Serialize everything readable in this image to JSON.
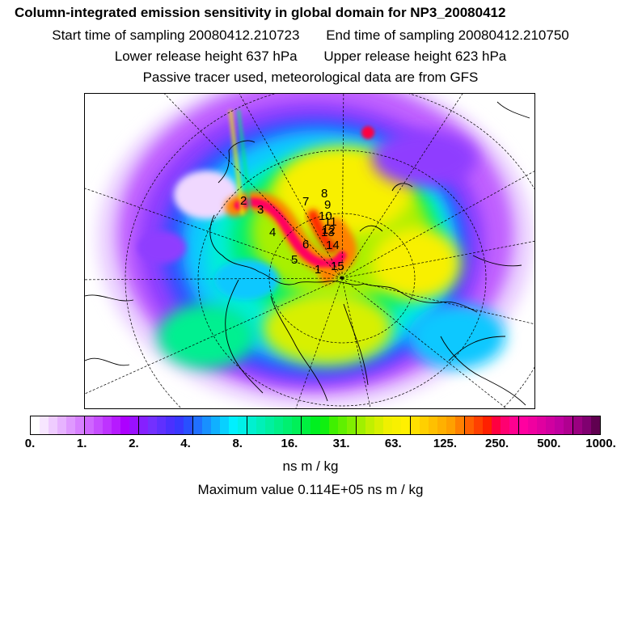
{
  "title": "Column-integrated emission sensitivity in global domain for NP3_20080412",
  "sampling": {
    "start": "Start time of sampling 20080412.210723",
    "end": "End time of sampling 20080412.210750"
  },
  "release": {
    "lower": "Lower release height  637 hPa",
    "upper": "Upper release height  623 hPa"
  },
  "note": "Passive tracer used, meteorological data are from GFS",
  "colorbar": {
    "ticks": [
      "0.",
      "1.",
      "2.",
      "4.",
      "8.",
      "16.",
      "31.",
      "63.",
      "125.",
      "250.",
      "500.",
      "1000."
    ],
    "units": "ns m / kg",
    "colors": [
      "#ffffff",
      "#f7e6ff",
      "#efccff",
      "#e7b3ff",
      "#df99ff",
      "#d780ff",
      "#cf66ff",
      "#c64dff",
      "#be33ff",
      "#b61aff",
      "#ad00ff",
      "#9a10ff",
      "#8620ff",
      "#7330ff",
      "#5f30ff",
      "#4b30ff",
      "#3838ff",
      "#2850ff",
      "#2070ff",
      "#1890ff",
      "#10b0ff",
      "#08d0ff",
      "#00f0ff",
      "#00f0e8",
      "#00f0d0",
      "#00f0b8",
      "#00f0a0",
      "#00f088",
      "#00f070",
      "#00f058",
      "#00f040",
      "#00f020",
      "#10f010",
      "#40f000",
      "#60f000",
      "#80f000",
      "#a0f000",
      "#c0f000",
      "#d8f000",
      "#f0f000",
      "#f8f000",
      "#fff000",
      "#ffe000",
      "#ffd000",
      "#ffc000",
      "#ffb000",
      "#ffa000",
      "#ff8000",
      "#ff6000",
      "#ff4000",
      "#ff2000",
      "#ff0040",
      "#ff0070",
      "#ff0090",
      "#ff00a0",
      "#f000a0",
      "#e000a0",
      "#d000a0",
      "#c000a0",
      "#b00090",
      "#9a0080",
      "#800070",
      "#600050"
    ]
  },
  "maximum": "Maximum value  0.114E+05 ns m / kg",
  "trajectory_labels": [
    "1",
    "2",
    "3",
    "4",
    "5",
    "6",
    "7",
    "8",
    "9",
    "10",
    "11",
    "12",
    "13",
    "14",
    "15"
  ]
}
